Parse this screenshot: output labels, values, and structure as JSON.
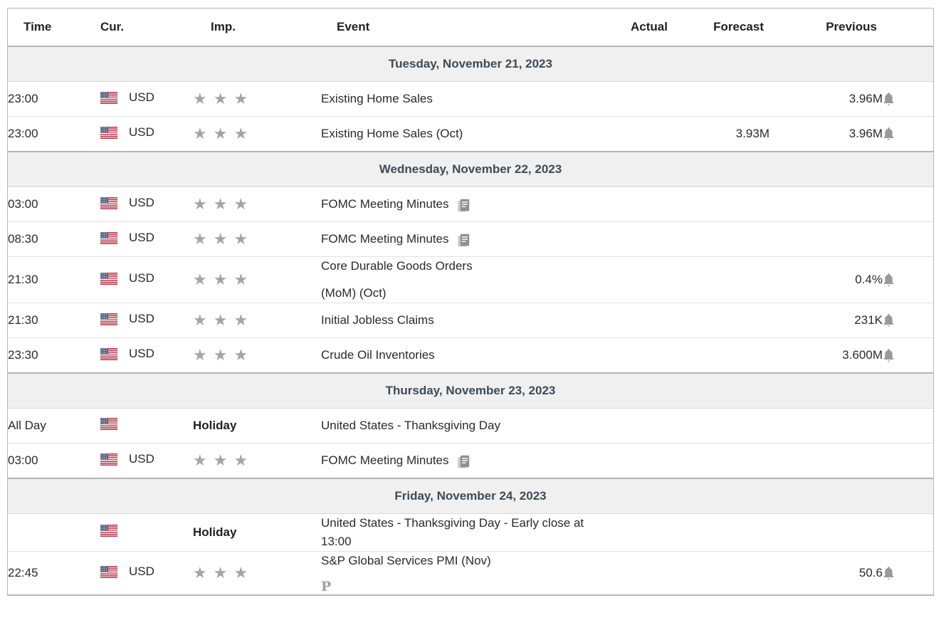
{
  "table": {
    "columns": {
      "time": "Time",
      "cur": "Cur.",
      "imp": "Imp.",
      "event": "Event",
      "actual": "Actual",
      "forecast": "Forecast",
      "previous": "Previous"
    },
    "sections": [
      {
        "date": "Tuesday, November 21, 2023",
        "rows": [
          {
            "time": "23:00",
            "currency": "USD",
            "stars": 3,
            "event": "Existing Home Sales",
            "actual": "",
            "forecast": "",
            "previous": "3.96M",
            "bell": true
          },
          {
            "time": "23:00",
            "currency": "USD",
            "stars": 3,
            "event": "Existing Home Sales (Oct)",
            "actual": "",
            "forecast": "3.93M",
            "previous": "3.96M",
            "bell": true
          }
        ]
      },
      {
        "date": "Wednesday, November 22, 2023",
        "rows": [
          {
            "time": "03:00",
            "currency": "USD",
            "stars": 3,
            "event": "FOMC Meeting Minutes",
            "doc_icon": true
          },
          {
            "time": "08:30",
            "currency": "USD",
            "stars": 3,
            "event": "FOMC Meeting Minutes",
            "doc_icon": true
          },
          {
            "time": "21:30",
            "currency": "USD",
            "stars": 3,
            "event": "Core Durable Goods Orders",
            "event_line2": "(MoM) (Oct)",
            "previous": "0.4%",
            "bell": true
          },
          {
            "time": "21:30",
            "currency": "USD",
            "stars": 3,
            "event": "Initial Jobless Claims",
            "previous": "231K",
            "bell": true
          },
          {
            "time": "23:30",
            "currency": "USD",
            "stars": 3,
            "event": "Crude Oil Inventories",
            "previous": "3.600M",
            "bell": true
          }
        ]
      },
      {
        "date": "Thursday, November 23, 2023",
        "rows": [
          {
            "time": "All Day",
            "currency": "",
            "holiday": "Holiday",
            "event": "United States - Thanksgiving Day"
          },
          {
            "time": "03:00",
            "currency": "USD",
            "stars": 3,
            "event": "FOMC Meeting Minutes",
            "doc_icon": true
          }
        ]
      },
      {
        "date": "Friday, November 24, 2023",
        "rows": [
          {
            "time": "",
            "currency": "",
            "holiday": "Holiday",
            "event": "United States - Thanksgiving Day - Early close at 13:00"
          },
          {
            "time": "22:45",
            "currency": "USD",
            "stars": 3,
            "event": "S&P Global Services PMI (Nov)",
            "marker": "P",
            "previous": "50.6",
            "bell": true
          }
        ]
      }
    ]
  },
  "icons": {
    "flag": "us-flag-icon",
    "star": "importance-star-icon",
    "star_glyph": "★",
    "bell": "bell-icon",
    "doc": "report-icon"
  },
  "colors": {
    "date_band_background": "#f0f0f0",
    "date_band_text": "#3e4a55",
    "row_separator": "#e2e2e2",
    "section_separator": "#b5b5b5",
    "outer_border": "#b7b7b7",
    "star_gray": "#a5a5a5",
    "icon_gray": "#9a9a9a",
    "flag_red": "#bf3b4b",
    "flag_blue": "#3a4066"
  }
}
